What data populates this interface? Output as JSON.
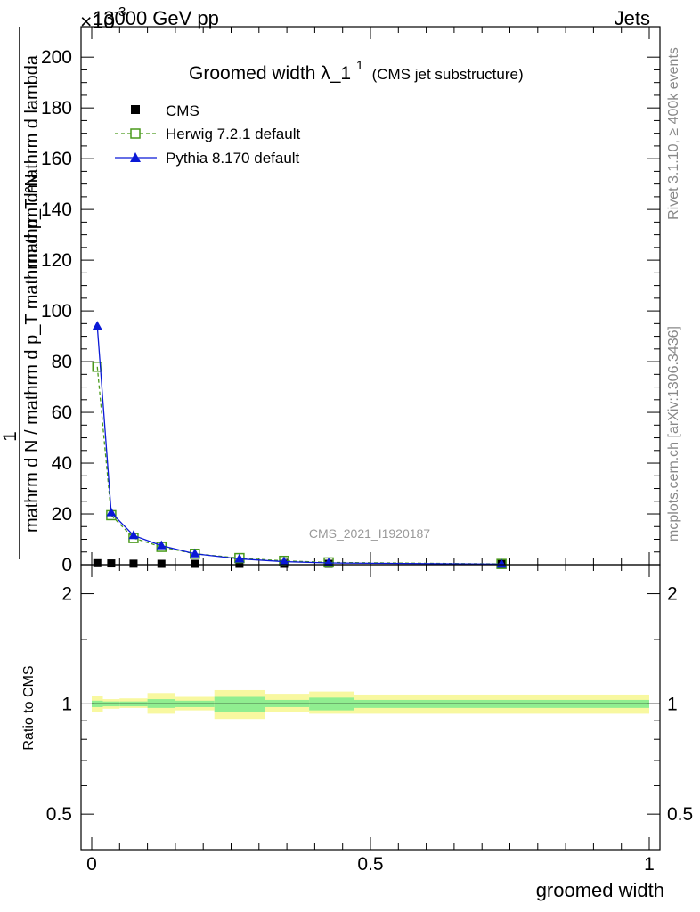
{
  "header": {
    "energy": "13000 GeV pp",
    "category": "Jets",
    "exponent_label": "×10",
    "exponent_value": "-3"
  },
  "title": {
    "main": "Groomed width λ_1",
    "superscript": "1",
    "sub": "(CMS jet substructure)"
  },
  "ylabel_main": {
    "numerator": "mathrm d²N",
    "frac_one": "1",
    "denominator": "mathrm d N / mathrm d p_T mathrm d p_T mathrm d lambda"
  },
  "ylabel_ratio": "Ratio to CMS",
  "xlabel": "groomed width",
  "watermark": "CMS_2021_I1920187",
  "side_labels": {
    "rivet": "Rivet 3.1.10, ≥ 400k events",
    "mcplots": "mcplots.cern.ch [arXiv:1306.3436]"
  },
  "legend": [
    {
      "label": "CMS",
      "color": "#000000",
      "marker": "filled-square"
    },
    {
      "label": "Herwig 7.2.1 default",
      "color": "#4a9a1c",
      "marker": "open-square",
      "line": "dashed"
    },
    {
      "label": "Pythia 8.170 default",
      "color": "#0a19d6",
      "marker": "filled-triangle",
      "line": "solid"
    }
  ],
  "chart_data": {
    "type": "line",
    "main": {
      "xlim": [
        0,
        1
      ],
      "ylim": [
        0,
        212
      ],
      "yticks": [
        0,
        20,
        40,
        60,
        80,
        100,
        120,
        140,
        160,
        180,
        200
      ],
      "series": [
        {
          "name": "CMS",
          "x": [
            0.01,
            0.035,
            0.075,
            0.125,
            0.185,
            0.265,
            0.345,
            0.425,
            0.735
          ],
          "y": [
            0.6,
            0.5,
            0.4,
            0.3,
            0.2,
            0.15,
            0.1,
            0.05,
            0.02
          ]
        },
        {
          "name": "Herwig 7.2.1 default",
          "x": [
            0.01,
            0.035,
            0.075,
            0.125,
            0.185,
            0.265,
            0.345,
            0.425,
            0.735
          ],
          "y": [
            78,
            19.5,
            10.5,
            7,
            4.3,
            2.6,
            1.5,
            0.9,
            0.3
          ]
        },
        {
          "name": "Pythia 8.170 default",
          "x": [
            0.01,
            0.035,
            0.075,
            0.125,
            0.185,
            0.265,
            0.345,
            0.425,
            0.735
          ],
          "y": [
            94,
            20.5,
            11.5,
            7.5,
            4.3,
            2.3,
            1.2,
            0.7,
            0.2
          ]
        }
      ]
    },
    "ratio": {
      "ylim": [
        0.4,
        2.4
      ],
      "yticks": [
        0.5,
        1,
        2
      ],
      "ytick_labels": [
        "0.5",
        "1",
        "2"
      ],
      "xticks": [
        0,
        0.5,
        1
      ],
      "xtick_labels": [
        "0",
        "0.5",
        "1"
      ],
      "bins": [
        {
          "x0": 0.0,
          "x1": 0.02,
          "inner": [
            0.98,
            1.02
          ],
          "outer": [
            0.95,
            1.05
          ]
        },
        {
          "x0": 0.02,
          "x1": 0.05,
          "inner": [
            0.985,
            1.015
          ],
          "outer": [
            0.97,
            1.03
          ]
        },
        {
          "x0": 0.05,
          "x1": 0.1,
          "inner": [
            0.985,
            1.015
          ],
          "outer": [
            0.975,
            1.035
          ]
        },
        {
          "x0": 0.1,
          "x1": 0.15,
          "inner": [
            0.975,
            1.03
          ],
          "outer": [
            0.94,
            1.07
          ]
        },
        {
          "x0": 0.15,
          "x1": 0.22,
          "inner": [
            0.98,
            1.02
          ],
          "outer": [
            0.96,
            1.045
          ]
        },
        {
          "x0": 0.22,
          "x1": 0.31,
          "inner": [
            0.95,
            1.045
          ],
          "outer": [
            0.91,
            1.09
          ]
        },
        {
          "x0": 0.31,
          "x1": 0.39,
          "inner": [
            0.98,
            1.025
          ],
          "outer": [
            0.95,
            1.065
          ]
        },
        {
          "x0": 0.39,
          "x1": 0.47,
          "inner": [
            0.96,
            1.04
          ],
          "outer": [
            0.94,
            1.08
          ]
        },
        {
          "x0": 0.47,
          "x1": 1.0,
          "inner": [
            0.975,
            1.025
          ],
          "outer": [
            0.94,
            1.06
          ]
        }
      ]
    }
  }
}
